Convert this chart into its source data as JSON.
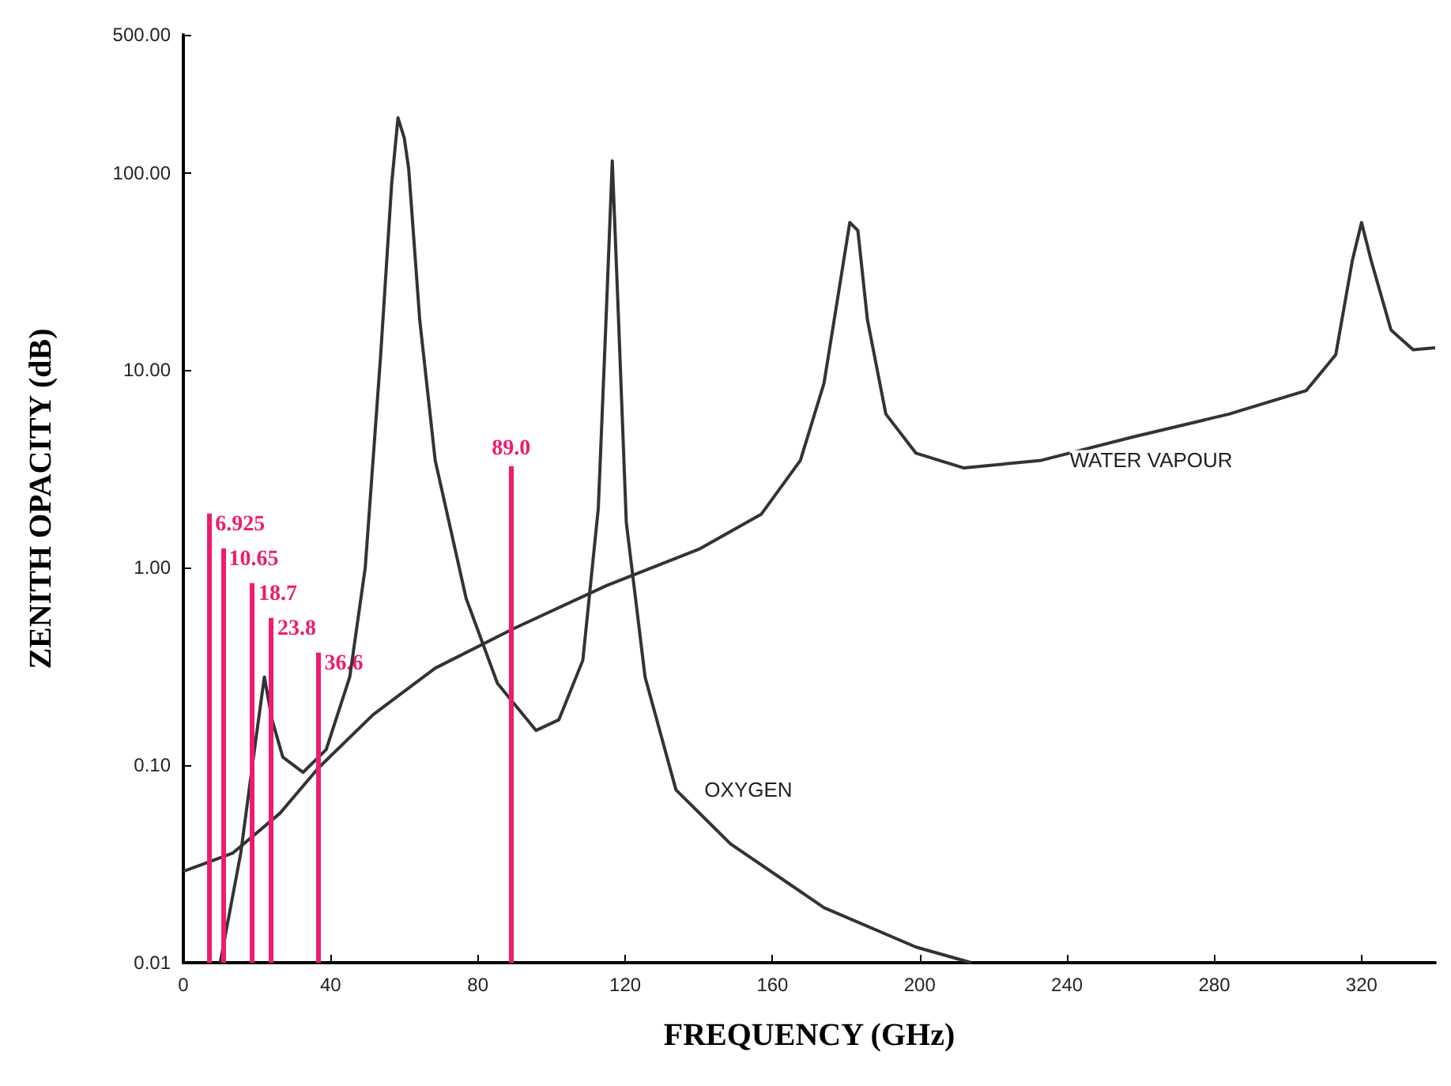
{
  "chart_data": {
    "type": "line",
    "xlabel": "FREQUENCY (GHz)",
    "ylabel": "ZENITH OPACITY (dB)",
    "log": "y",
    "grid": false,
    "marker": "none",
    "line_style": "solid",
    "xlim": [
      0,
      340
    ],
    "xticks": [
      0,
      40,
      80,
      120,
      160,
      200,
      240,
      280,
      320
    ],
    "ylim": [
      0.01,
      500
    ],
    "yticks": [
      {
        "value": 0.01,
        "label": "0.01"
      },
      {
        "value": 0.1,
        "label": "0.10"
      },
      {
        "value": 1,
        "label": "1.00"
      },
      {
        "value": 10,
        "label": "10.00"
      },
      {
        "value": 100,
        "label": "100.00"
      },
      {
        "value": 500,
        "label": "500.00"
      }
    ],
    "series": [
      {
        "color": "#333333",
        "x": [
          10,
          15.6,
          19.8,
          22,
          24.1,
          27,
          32.5,
          38.8,
          45.2,
          49.4,
          53.6,
          56.6,
          58.3,
          60,
          61.2,
          64.2,
          68.4,
          76.8,
          85.3,
          95.8,
          102,
          108.5,
          112.7,
          114.8,
          116.5,
          118.2,
          120.3,
          125.4,
          133.8,
          148.6,
          174,
          199,
          214
        ],
        "values": [
          0.01,
          0.036,
          0.14,
          0.28,
          0.17,
          0.11,
          0.092,
          0.12,
          0.28,
          1,
          12,
          89,
          190,
          150,
          105,
          18,
          3.5,
          0.7,
          0.26,
          0.15,
          0.17,
          0.34,
          2,
          18,
          115,
          18,
          1.7,
          0.28,
          0.075,
          0.04,
          0.019,
          0.012,
          0.01
        ]
      },
      {
        "color": "#333333",
        "x": [
          0,
          13.5,
          26.2,
          36.7,
          51.5,
          68.4,
          89.5,
          114.8,
          140,
          157,
          167.6,
          174,
          178,
          181,
          183.2,
          185.8,
          190.8,
          199,
          212,
          233,
          258,
          284,
          305,
          313,
          317.5,
          320,
          322.6,
          328,
          334,
          340
        ],
        "values": [
          0.029,
          0.036,
          0.057,
          0.097,
          0.18,
          0.31,
          0.49,
          0.81,
          1.24,
          1.87,
          3.5,
          8.6,
          25,
          56,
          51,
          18,
          6,
          3.8,
          3.2,
          3.5,
          4.6,
          6,
          7.9,
          12,
          36,
          56,
          36,
          16,
          12.7,
          13
        ]
      }
    ],
    "annotations": [
      {
        "text": "OXYGEN",
        "x": 133.8,
        "y": 0.075
      },
      {
        "text": "WATER VAPOUR",
        "x": 233,
        "y": 3.5
      }
    ],
    "ref_lines": [
      {
        "axis": "x",
        "value": 6.925,
        "label": "6.925",
        "color": "#ee1c6e"
      },
      {
        "axis": "x",
        "value": 10.65,
        "label": "10.65",
        "color": "#ee1c6e"
      },
      {
        "axis": "x",
        "value": 18.7,
        "label": "18.7",
        "color": "#ee1c6e"
      },
      {
        "axis": "x",
        "value": 23.8,
        "label": "23.8",
        "color": "#ee1c6e"
      },
      {
        "axis": "x",
        "value": 36.6,
        "label": "36.6",
        "color": "#ee1c6e"
      },
      {
        "axis": "x",
        "value": 89.0,
        "label": "89.0",
        "color": "#ee1c6e"
      }
    ]
  }
}
